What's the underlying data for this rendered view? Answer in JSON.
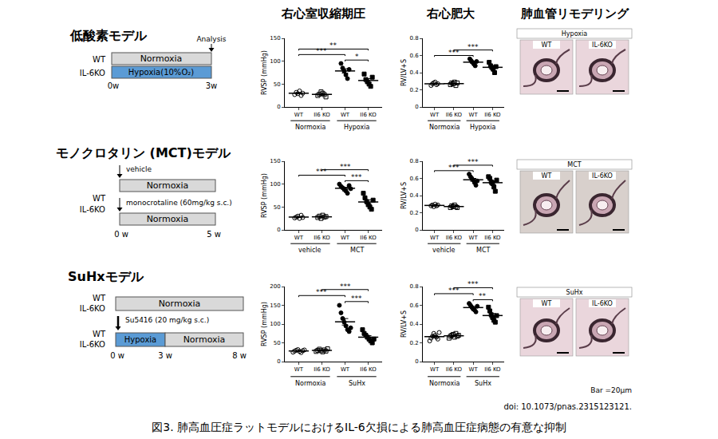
{
  "headers": [
    "右心室収縮期圧",
    "右心肥大",
    "肺血管リモデリング"
  ],
  "models": [
    {
      "title": "低酸素モデル",
      "schematic": {
        "genotypes": [
          "WT",
          "IL-6KO"
        ],
        "boxes": [
          "Normoxia",
          "Hypoxia(10%O₂)"
        ],
        "timepoint_label": "Analysis",
        "times": [
          "0w",
          "3w"
        ]
      },
      "histology": {
        "title": "Hypoxia",
        "labels": [
          "WT",
          "IL-6KO"
        ]
      }
    },
    {
      "title": "モノクロタリン (MCT)モデル",
      "schematic": {
        "genotypes": [
          "WT",
          "IL-6KO"
        ],
        "treatments": [
          "vehicle",
          "monocrotaline (60mg/kg s.c.)"
        ],
        "boxes": [
          "Normoxia",
          "Normoxia"
        ],
        "times": [
          "0 w",
          "5 w"
        ]
      },
      "histology": {
        "title": "MCT",
        "labels": [
          "WT",
          "IL-6KO"
        ]
      }
    },
    {
      "title": "SuHxモデル",
      "schematic": {
        "genotypes": [
          "WT",
          "IL-6KO"
        ],
        "treatment": "Su5416 (20 mg/kg s.c.)",
        "boxes": [
          "Normoxia",
          "Hypoxia",
          "Normoxia"
        ],
        "times": [
          "0 w",
          "3 w",
          "8 w"
        ]
      },
      "histology": {
        "title": "SuHx",
        "labels": [
          "WT",
          "IL-6KO"
        ]
      }
    }
  ],
  "chart_data": [
    {
      "type": "scatter",
      "ylabel": "RVSP (mmHg)",
      "ylim": [
        0,
        150
      ],
      "yticks": [
        0,
        50,
        100,
        150
      ],
      "groups": [
        "Normoxia",
        "Hypoxia"
      ],
      "series": [
        {
          "name": "WT",
          "marker": "circle-open",
          "values": [
            27,
            32,
            29,
            35,
            25,
            30
          ],
          "mean": 30,
          "error": 1.5
        },
        {
          "name": "Il6 KO",
          "marker": "square-open",
          "values": [
            25,
            28,
            33,
            30,
            27,
            22
          ],
          "mean": 27.5,
          "error": 1.6
        },
        {
          "name": "WT",
          "marker": "circle",
          "values": [
            95,
            85,
            78,
            70,
            62,
            82
          ],
          "mean": 78.7,
          "error": 4.8
        },
        {
          "name": "Il6 KO",
          "marker": "square",
          "values": [
            72,
            60,
            55,
            50,
            45,
            65
          ],
          "mean": 57.8,
          "error": 4.1
        }
      ],
      "comparisons": [
        {
          "pair": [
            0,
            2
          ],
          "label": "***"
        },
        {
          "pair": [
            0,
            3
          ],
          "label": "**"
        },
        {
          "pair": [
            2,
            3
          ],
          "label": "*"
        }
      ]
    },
    {
      "type": "scatter",
      "ylabel": "RV/LV+S",
      "ylim": [
        0,
        0.8
      ],
      "yticks": [
        0,
        0.2,
        0.4,
        0.6,
        0.8
      ],
      "groups": [
        "Normoxia",
        "Hypoxia"
      ],
      "series": [
        {
          "name": "WT",
          "marker": "circle-open",
          "values": [
            0.25,
            0.27,
            0.28,
            0.29,
            0.26,
            0.27
          ],
          "mean": 0.27,
          "error": 0.006
        },
        {
          "name": "Il6 KO",
          "marker": "square-open",
          "values": [
            0.26,
            0.28,
            0.27,
            0.29,
            0.25,
            0.28
          ],
          "mean": 0.272,
          "error": 0.006
        },
        {
          "name": "WT",
          "marker": "circle",
          "values": [
            0.56,
            0.54,
            0.52,
            0.5,
            0.48,
            0.53
          ],
          "mean": 0.522,
          "error": 0.012
        },
        {
          "name": "Il6 KO",
          "marker": "square",
          "values": [
            0.52,
            0.48,
            0.46,
            0.44,
            0.4,
            0.47
          ],
          "mean": 0.462,
          "error": 0.016
        }
      ],
      "comparisons": [
        {
          "pair": [
            0,
            2
          ],
          "label": "***"
        },
        {
          "pair": [
            1,
            3
          ],
          "label": "***"
        }
      ]
    },
    {
      "type": "scatter",
      "ylabel": "RVSP (mmHg)",
      "ylim": [
        0,
        150
      ],
      "yticks": [
        0,
        50,
        100,
        150
      ],
      "groups": [
        "vehicle",
        "MCT"
      ],
      "series": [
        {
          "name": "WT",
          "marker": "circle-open",
          "values": [
            26,
            28,
            30,
            25,
            32,
            27
          ],
          "mean": 28,
          "error": 1
        },
        {
          "name": "Il6 KO",
          "marker": "square-open",
          "values": [
            27,
            30,
            25,
            32,
            28,
            29
          ],
          "mean": 28.5,
          "error": 1
        },
        {
          "name": "WT",
          "marker": "circle",
          "values": [
            100,
            95,
            92,
            88,
            85,
            80,
            97,
            90
          ],
          "mean": 90.9,
          "error": 2.3
        },
        {
          "name": "Il6 KO",
          "marker": "square",
          "values": [
            80,
            70,
            62,
            55,
            50,
            45,
            65
          ],
          "mean": 61,
          "error": 4.5
        }
      ],
      "comparisons": [
        {
          "pair": [
            0,
            2
          ],
          "label": "***"
        },
        {
          "pair": [
            1,
            3
          ],
          "label": "***"
        },
        {
          "pair": [
            2,
            3
          ],
          "label": "***"
        }
      ]
    },
    {
      "type": "scatter",
      "ylabel": "RV/LV+S",
      "ylim": [
        0,
        0.8
      ],
      "yticks": [
        0,
        0.2,
        0.4,
        0.6,
        0.8
      ],
      "groups": [
        "vehicle",
        "MCT"
      ],
      "series": [
        {
          "name": "WT",
          "marker": "circle-open",
          "values": [
            0.28,
            0.29,
            0.27,
            0.3,
            0.28,
            0.29
          ],
          "mean": 0.285,
          "error": 0.005
        },
        {
          "name": "Il6 KO",
          "marker": "square-open",
          "values": [
            0.26,
            0.28,
            0.27,
            0.29,
            0.27,
            0.26
          ],
          "mean": 0.272,
          "error": 0.005
        },
        {
          "name": "WT",
          "marker": "circle",
          "values": [
            0.65,
            0.62,
            0.6,
            0.58,
            0.55,
            0.52,
            0.57
          ],
          "mean": 0.584,
          "error": 0.016
        },
        {
          "name": "Il6 KO",
          "marker": "square",
          "values": [
            0.62,
            0.6,
            0.56,
            0.54,
            0.5,
            0.45,
            0.58
          ],
          "mean": 0.55,
          "error": 0.022
        }
      ],
      "comparisons": [
        {
          "pair": [
            0,
            2
          ],
          "label": "***"
        },
        {
          "pair": [
            1,
            3
          ],
          "label": "***"
        }
      ]
    },
    {
      "type": "scatter",
      "ylabel": "RVSP (mmHg)",
      "ylim": [
        0,
        200
      ],
      "yticks": [
        0,
        50,
        100,
        150,
        200
      ],
      "groups": [
        "Normoxia",
        "SuHx"
      ],
      "series": [
        {
          "name": "WT",
          "marker": "circle-open",
          "values": [
            25,
            28,
            30,
            32,
            27,
            24,
            29,
            31
          ],
          "mean": 28.3,
          "error": 1
        },
        {
          "name": "Il6 KO",
          "marker": "square-open",
          "values": [
            27,
            30,
            33,
            29,
            26,
            31,
            28,
            34
          ],
          "mean": 29.8,
          "error": 1
        },
        {
          "name": "WT",
          "marker": "circle",
          "values": [
            150,
            130,
            115,
            105,
            95,
            85,
            80,
            90
          ],
          "mean": 106,
          "error": 8.6
        },
        {
          "name": "Il6 KO",
          "marker": "square",
          "values": [
            85,
            75,
            70,
            65,
            60,
            55,
            50,
            60
          ],
          "mean": 65,
          "error": 4
        }
      ],
      "comparisons": [
        {
          "pair": [
            0,
            2
          ],
          "label": "***"
        },
        {
          "pair": [
            1,
            3
          ],
          "label": "***"
        },
        {
          "pair": [
            2,
            3
          ],
          "label": "***"
        }
      ]
    },
    {
      "type": "scatter",
      "ylabel": "RV/LV+S",
      "ylim": [
        0,
        0.8
      ],
      "yticks": [
        0,
        0.2,
        0.4,
        0.6,
        0.8
      ],
      "groups": [
        "Normoxia",
        "SuHx"
      ],
      "series": [
        {
          "name": "WT",
          "marker": "circle-open",
          "values": [
            0.22,
            0.25,
            0.27,
            0.3,
            0.28,
            0.26,
            0.24,
            0.31
          ],
          "mean": 0.266,
          "error": 0.011
        },
        {
          "name": "Il6 KO",
          "marker": "square-open",
          "values": [
            0.25,
            0.27,
            0.28,
            0.29,
            0.26,
            0.3,
            0.27,
            0.28
          ],
          "mean": 0.275,
          "error": 0.006
        },
        {
          "name": "WT",
          "marker": "circle",
          "values": [
            0.62,
            0.6,
            0.58,
            0.56,
            0.55,
            0.53,
            0.59
          ],
          "mean": 0.576,
          "error": 0.012
        },
        {
          "name": "Il6 KO",
          "marker": "square",
          "values": [
            0.58,
            0.54,
            0.5,
            0.47,
            0.44,
            0.42,
            0.49
          ],
          "mean": 0.491,
          "error": 0.021
        }
      ],
      "comparisons": [
        {
          "pair": [
            0,
            2
          ],
          "label": "***"
        },
        {
          "pair": [
            1,
            3
          ],
          "label": "***"
        },
        {
          "pair": [
            2,
            3
          ],
          "label": "**"
        }
      ]
    }
  ],
  "scale_bar": "Bar =20μm",
  "doi": "doi: 10.1073/pnas.2315123121.",
  "caption": "図3. 肺高血圧症ラットモデルにおけるIL-6欠損による肺高血圧症病態の有意な抑制"
}
